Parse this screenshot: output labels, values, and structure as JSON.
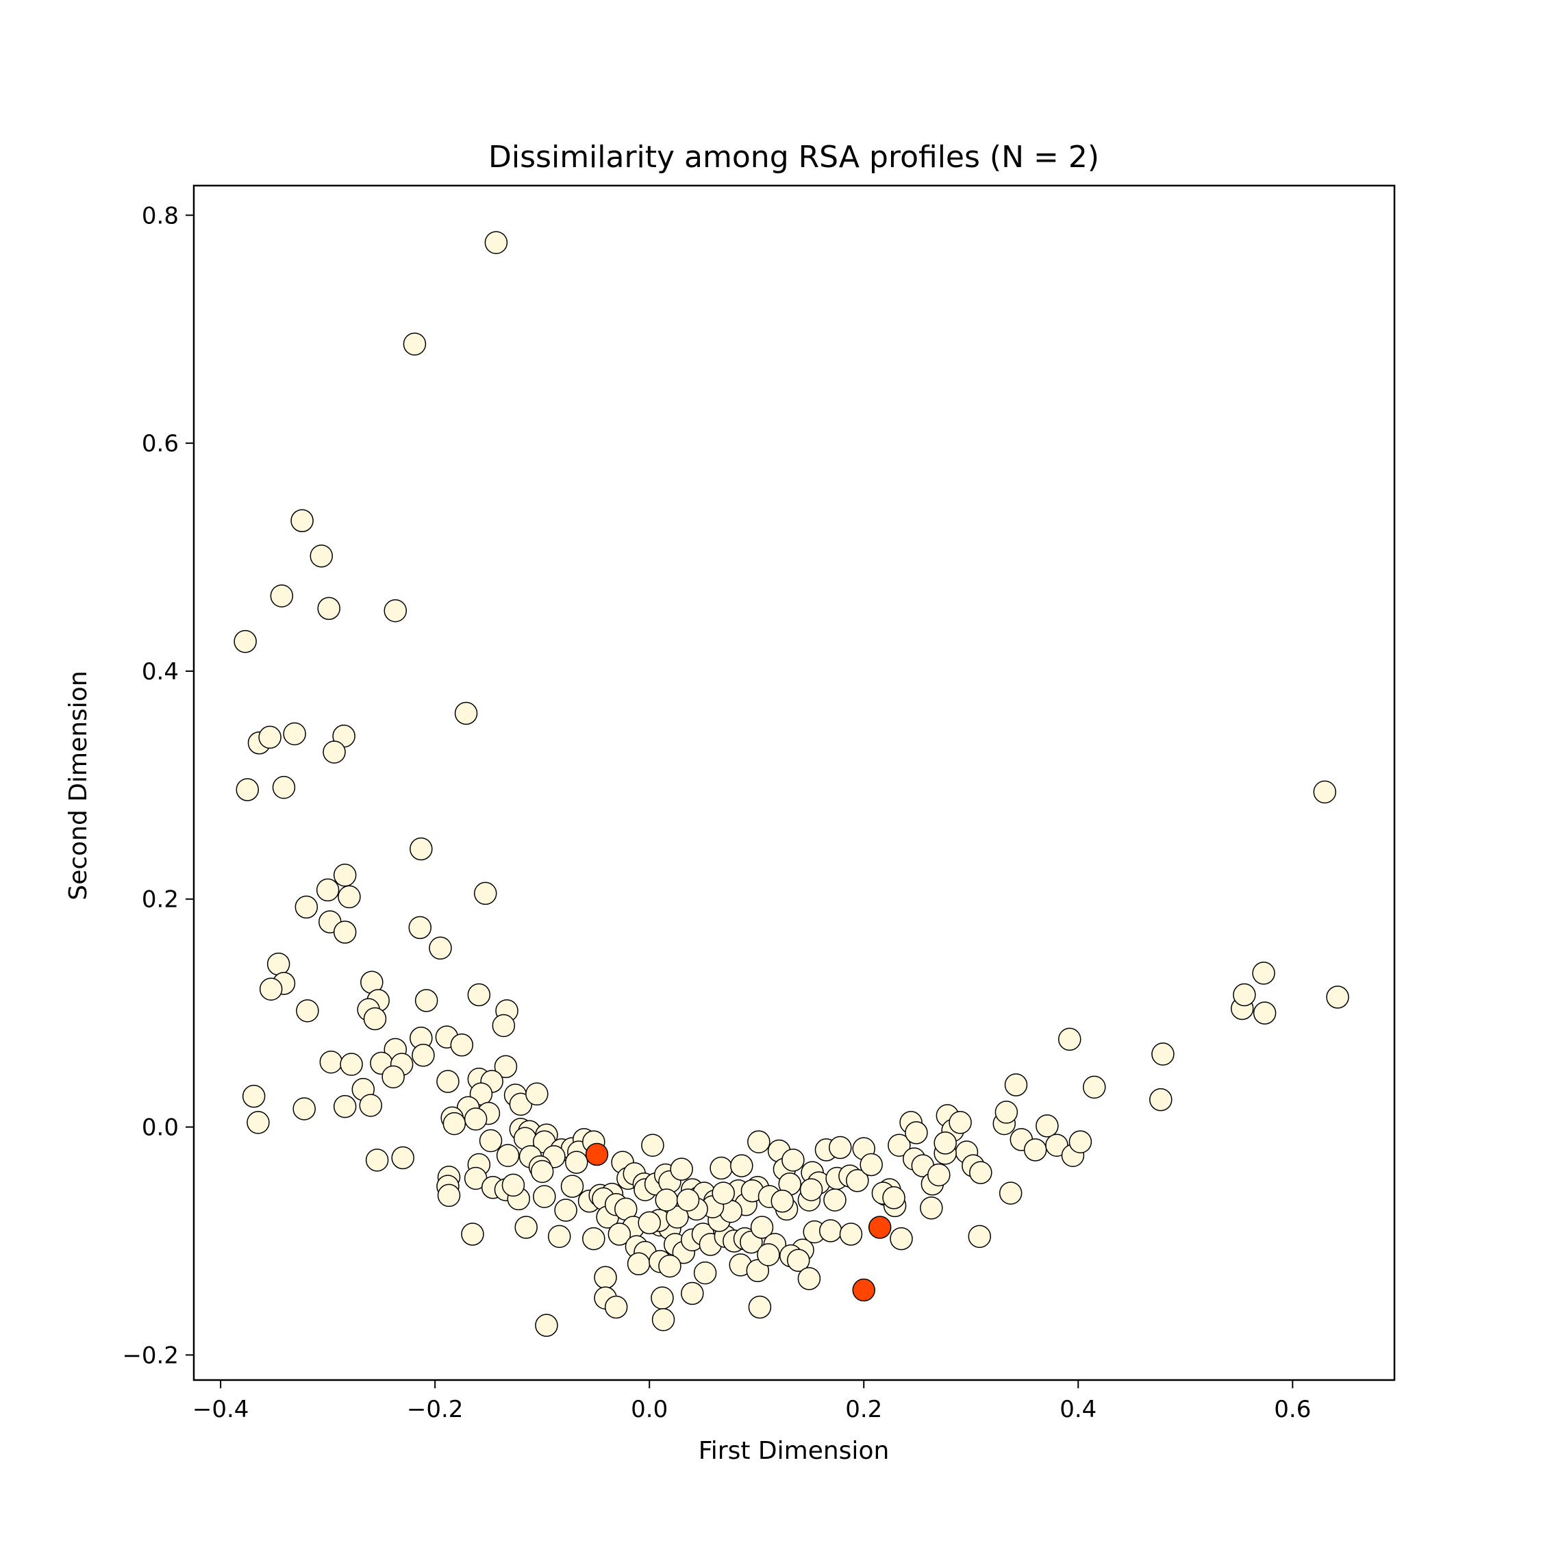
{
  "chart_data": {
    "type": "scatter",
    "title": "Dissimilarity among RSA profiles (N = 2)",
    "xlabel": "First Dimension",
    "ylabel": "Second Dimension",
    "xlim": [
      -0.425,
      0.695
    ],
    "ylim": [
      -0.222,
      0.826
    ],
    "xticks": [
      -0.4,
      -0.2,
      0.0,
      0.2,
      0.4,
      0.6
    ],
    "xtick_labels": [
      "−0.4",
      "−0.2",
      "0.0",
      "0.2",
      "0.4",
      "0.6"
    ],
    "yticks": [
      -0.2,
      0.0,
      0.2,
      0.4,
      0.6,
      0.8
    ],
    "ytick_labels": [
      "−0.2",
      "0.0",
      "0.2",
      "0.4",
      "0.6",
      "0.8"
    ],
    "grid": false,
    "colors": {
      "base": "#fff8dc",
      "highlight": "#ff4500",
      "edge": "#000000"
    },
    "series": [
      {
        "color": "#fff8dc",
        "points": [
          [
            -0.143,
            0.776
          ],
          [
            -0.219,
            0.687
          ],
          [
            -0.324,
            0.532
          ],
          [
            -0.306,
            0.501
          ],
          [
            -0.343,
            0.466
          ],
          [
            -0.299,
            0.455
          ],
          [
            -0.237,
            0.453
          ],
          [
            -0.377,
            0.426
          ],
          [
            -0.171,
            0.363
          ],
          [
            -0.364,
            0.337
          ],
          [
            -0.354,
            0.342
          ],
          [
            -0.331,
            0.345
          ],
          [
            -0.285,
            0.343
          ],
          [
            -0.294,
            0.329
          ],
          [
            -0.375,
            0.296
          ],
          [
            -0.341,
            0.298
          ],
          [
            -0.213,
            0.244
          ],
          [
            -0.153,
            0.205
          ],
          [
            -0.284,
            0.221
          ],
          [
            -0.3,
            0.208
          ],
          [
            -0.28,
            0.202
          ],
          [
            -0.32,
            0.193
          ],
          [
            -0.298,
            0.18
          ],
          [
            -0.284,
            0.171
          ],
          [
            -0.214,
            0.175
          ],
          [
            -0.195,
            0.157
          ],
          [
            -0.346,
            0.143
          ],
          [
            -0.341,
            0.126
          ],
          [
            -0.353,
            0.121
          ],
          [
            -0.259,
            0.127
          ],
          [
            -0.159,
            0.116
          ],
          [
            -0.208,
            0.111
          ],
          [
            -0.253,
            0.111
          ],
          [
            -0.262,
            0.103
          ],
          [
            -0.256,
            0.095
          ],
          [
            -0.319,
            0.102
          ],
          [
            -0.133,
            0.102
          ],
          [
            -0.136,
            0.089
          ],
          [
            -0.213,
            0.078
          ],
          [
            -0.189,
            0.079
          ],
          [
            -0.175,
            0.072
          ],
          [
            -0.237,
            0.068
          ],
          [
            -0.211,
            0.063
          ],
          [
            -0.297,
            0.057
          ],
          [
            -0.278,
            0.055
          ],
          [
            -0.25,
            0.056
          ],
          [
            -0.231,
            0.055
          ],
          [
            -0.239,
            0.044
          ],
          [
            -0.134,
            0.053
          ],
          [
            -0.159,
            0.042
          ],
          [
            -0.147,
            0.04
          ],
          [
            -0.188,
            0.04
          ],
          [
            -0.267,
            0.033
          ],
          [
            -0.157,
            0.029
          ],
          [
            -0.125,
            0.028
          ],
          [
            -0.12,
            0.02
          ],
          [
            -0.105,
            0.029
          ],
          [
            -0.369,
            0.027
          ],
          [
            -0.365,
            0.004
          ],
          [
            -0.322,
            0.016
          ],
          [
            -0.284,
            0.018
          ],
          [
            -0.26,
            0.019
          ],
          [
            -0.169,
            0.017
          ],
          [
            -0.15,
            0.012
          ],
          [
            -0.184,
            0.008
          ],
          [
            -0.182,
            0.003
          ],
          [
            -0.162,
            0.007
          ],
          [
            -0.12,
            -0.002
          ],
          [
            -0.112,
            -0.004
          ],
          [
            -0.096,
            -0.007
          ],
          [
            -0.116,
            -0.01
          ],
          [
            -0.098,
            -0.013
          ],
          [
            -0.148,
            -0.012
          ],
          [
            -0.082,
            -0.02
          ],
          [
            -0.072,
            -0.019
          ],
          [
            -0.061,
            -0.011
          ],
          [
            -0.066,
            -0.022
          ],
          [
            -0.068,
            -0.031
          ],
          [
            -0.089,
            -0.026
          ],
          [
            -0.111,
            -0.026
          ],
          [
            -0.102,
            -0.035
          ],
          [
            -0.1,
            -0.039
          ],
          [
            -0.132,
            -0.025
          ],
          [
            -0.159,
            -0.033
          ],
          [
            -0.162,
            -0.045
          ],
          [
            -0.187,
            -0.044
          ],
          [
            -0.188,
            -0.052
          ],
          [
            -0.187,
            -0.06
          ],
          [
            -0.146,
            -0.053
          ],
          [
            -0.134,
            -0.055
          ],
          [
            -0.122,
            -0.063
          ],
          [
            -0.098,
            -0.061
          ],
          [
            -0.078,
            -0.073
          ],
          [
            -0.072,
            -0.052
          ],
          [
            -0.056,
            -0.065
          ],
          [
            -0.046,
            -0.06
          ],
          [
            -0.035,
            -0.059
          ],
          [
            -0.025,
            -0.031
          ],
          [
            -0.02,
            -0.045
          ],
          [
            -0.014,
            -0.041
          ],
          [
            -0.005,
            -0.05
          ],
          [
            0.003,
            -0.016
          ],
          [
            -0.004,
            -0.055
          ],
          [
            0.006,
            -0.05
          ],
          [
            0.015,
            -0.042
          ],
          [
            0.019,
            -0.048
          ],
          [
            0.03,
            -0.037
          ],
          [
            0.04,
            -0.055
          ],
          [
            0.046,
            -0.062
          ],
          [
            0.051,
            -0.058
          ],
          [
            0.061,
            -0.065
          ],
          [
            0.067,
            -0.036
          ],
          [
            0.074,
            -0.06
          ],
          [
            0.083,
            -0.056
          ],
          [
            0.086,
            -0.034
          ],
          [
            0.09,
            -0.068
          ],
          [
            0.101,
            -0.053
          ],
          [
            0.102,
            -0.013
          ],
          [
            0.121,
            -0.021
          ],
          [
            0.126,
            -0.037
          ],
          [
            0.131,
            -0.05
          ],
          [
            0.134,
            -0.029
          ],
          [
            0.152,
            -0.04
          ],
          [
            0.158,
            -0.049
          ],
          [
            0.165,
            -0.02
          ],
          [
            0.175,
            -0.045
          ],
          [
            0.178,
            -0.018
          ],
          [
            0.187,
            -0.043
          ],
          [
            0.194,
            -0.047
          ],
          [
            0.2,
            -0.019
          ],
          [
            0.207,
            -0.033
          ],
          [
            0.22,
            -0.059
          ],
          [
            0.224,
            -0.055
          ],
          [
            0.233,
            -0.016
          ],
          [
            0.244,
            0.004
          ],
          [
            0.247,
            -0.028
          ],
          [
            0.249,
            -0.005
          ],
          [
            0.255,
            -0.034
          ],
          [
            0.264,
            -0.05
          ],
          [
            0.27,
            -0.042
          ],
          [
            0.278,
            0.01
          ],
          [
            0.283,
            -0.003
          ],
          [
            0.29,
            0.004
          ],
          [
            0.296,
            -0.022
          ],
          [
            0.302,
            -0.034
          ],
          [
            0.309,
            -0.04
          ],
          [
            0.308,
            -0.096
          ],
          [
            0.331,
            0.003
          ],
          [
            0.333,
            0.013
          ],
          [
            0.337,
            -0.058
          ],
          [
            0.342,
            0.037
          ],
          [
            0.347,
            -0.011
          ],
          [
            0.36,
            -0.02
          ],
          [
            0.371,
            0.001
          ],
          [
            0.38,
            -0.016
          ],
          [
            0.392,
            0.077
          ],
          [
            0.395,
            -0.025
          ],
          [
            0.402,
            -0.013
          ],
          [
            0.415,
            0.035
          ],
          [
            0.479,
            0.064
          ],
          [
            0.477,
            0.024
          ],
          [
            0.553,
            0.104
          ],
          [
            0.555,
            0.116
          ],
          [
            0.573,
            0.135
          ],
          [
            0.574,
            0.1
          ],
          [
            0.63,
            0.294
          ],
          [
            0.642,
            0.114
          ],
          [
            -0.052,
            -0.013
          ],
          [
            -0.043,
            -0.063
          ],
          [
            -0.039,
            -0.079
          ],
          [
            -0.031,
            -0.068
          ],
          [
            -0.022,
            -0.072
          ],
          [
            -0.015,
            -0.088
          ],
          [
            -0.052,
            -0.098
          ],
          [
            -0.028,
            -0.094
          ],
          [
            -0.012,
            -0.105
          ],
          [
            -0.004,
            -0.11
          ],
          [
            0.01,
            -0.086
          ],
          [
            0.013,
            -0.082
          ],
          [
            0.019,
            -0.089
          ],
          [
            0.024,
            -0.103
          ],
          [
            0.032,
            -0.11
          ],
          [
            0.04,
            -0.099
          ],
          [
            0.05,
            -0.094
          ],
          [
            0.057,
            -0.103
          ],
          [
            0.071,
            -0.096
          ],
          [
            0.079,
            -0.1
          ],
          [
            0.089,
            -0.098
          ],
          [
            0.095,
            -0.101
          ],
          [
            0.105,
            -0.088
          ],
          [
            0.117,
            -0.103
          ],
          [
            0.128,
            -0.072
          ],
          [
            0.143,
            -0.108
          ],
          [
            0.154,
            -0.092
          ],
          [
            0.169,
            -0.091
          ],
          [
            0.188,
            -0.094
          ],
          [
            0.229,
            -0.069
          ],
          [
            0.235,
            -0.098
          ],
          [
            0.263,
            -0.071
          ],
          [
            -0.041,
            -0.132
          ],
          [
            -0.041,
            -0.15
          ],
          [
            -0.031,
            -0.158
          ],
          [
            -0.01,
            -0.12
          ],
          [
            0.01,
            -0.118
          ],
          [
            0.019,
            -0.122
          ],
          [
            0.012,
            -0.15
          ],
          [
            0.013,
            -0.169
          ],
          [
            0.04,
            -0.146
          ],
          [
            0.052,
            -0.128
          ],
          [
            0.085,
            -0.121
          ],
          [
            0.101,
            -0.126
          ],
          [
            0.111,
            -0.112
          ],
          [
            0.132,
            -0.113
          ],
          [
            0.139,
            -0.117
          ],
          [
            0.149,
            -0.133
          ],
          [
            0.103,
            -0.158
          ],
          [
            -0.096,
            -0.174
          ],
          [
            -0.084,
            -0.096
          ],
          [
            -0.115,
            -0.088
          ],
          [
            -0.165,
            -0.094
          ],
          [
            -0.254,
            -0.029
          ],
          [
            -0.23,
            -0.027
          ],
          [
            -0.127,
            -0.051
          ],
          [
            0.009,
            -0.082
          ],
          [
            0.065,
            -0.082
          ],
          [
            0.076,
            -0.074
          ],
          [
            0.059,
            -0.07
          ],
          [
            0.044,
            -0.072
          ],
          [
            0.026,
            -0.079
          ],
          [
            0.0,
            -0.084
          ],
          [
            0.016,
            -0.064
          ],
          [
            0.036,
            -0.064
          ],
          [
            0.069,
            -0.058
          ],
          [
            0.096,
            -0.056
          ],
          [
            0.112,
            -0.061
          ],
          [
            0.124,
            -0.065
          ],
          [
            0.149,
            -0.064
          ],
          [
            0.151,
            -0.055
          ],
          [
            0.173,
            -0.064
          ],
          [
            0.218,
            -0.058
          ],
          [
            0.228,
            -0.062
          ],
          [
            0.276,
            -0.023
          ],
          [
            0.276,
            -0.014
          ]
        ]
      },
      {
        "color": "#ff4500",
        "points": [
          [
            -0.049,
            -0.024
          ],
          [
            0.215,
            -0.088
          ],
          [
            0.2,
            -0.143
          ]
        ]
      }
    ]
  }
}
